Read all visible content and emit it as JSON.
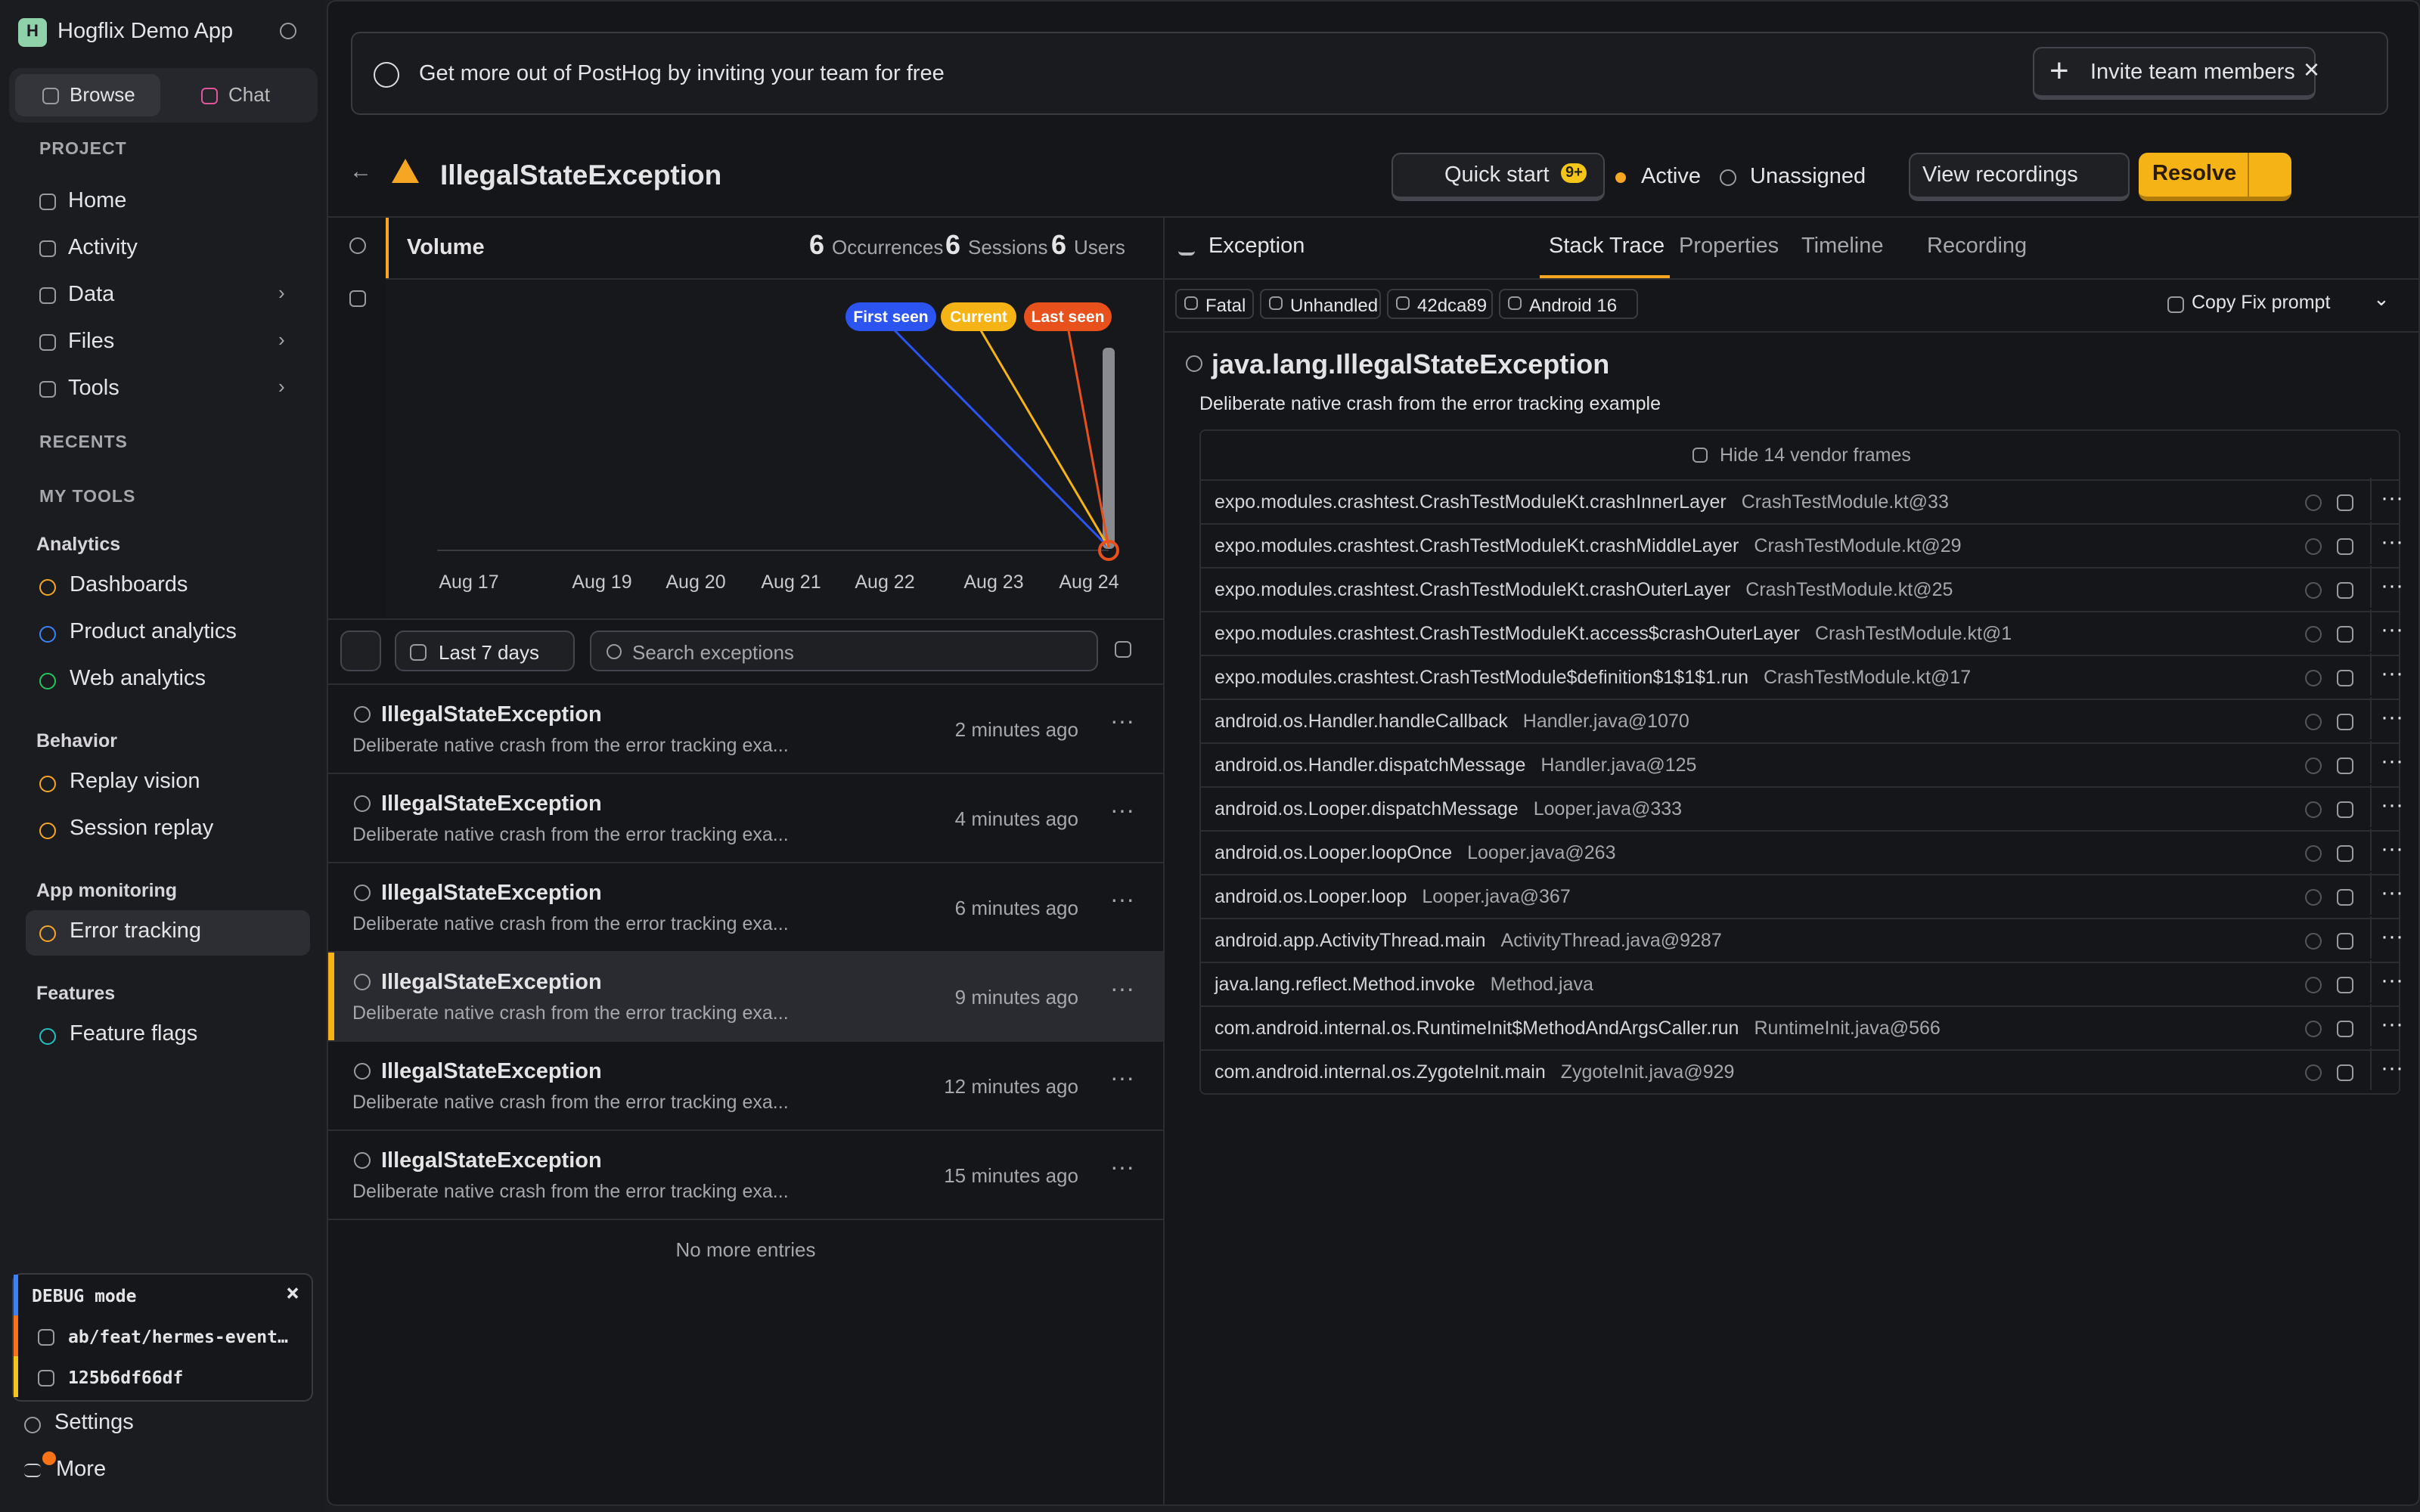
{
  "sidebar": {
    "logo_letter": "H",
    "app_name": "Hogflix Demo App",
    "tabs": [
      "Browse",
      "Chat"
    ],
    "project": "PROJECT",
    "nav": [
      "Home",
      "Activity",
      "Data",
      "Files",
      "Tools"
    ],
    "recents": "RECENTS",
    "my_tools": "MY TOOLS",
    "groups": [
      {
        "title": "Analytics",
        "items": [
          "Dashboards",
          "Product analytics",
          "Web analytics"
        ]
      },
      {
        "title": "Behavior",
        "items": [
          "Replay vision",
          "Session replay"
        ]
      },
      {
        "title": "App monitoring",
        "items": [
          "Error tracking"
        ]
      },
      {
        "title": "Features",
        "items": [
          "Feature flags"
        ]
      }
    ],
    "debug": {
      "title": "DEBUG mode",
      "branch": "ab/feat/hermes-event…",
      "commit": "125b6df66df"
    },
    "settings": "Settings",
    "more": "More"
  },
  "banner": {
    "text": "Get more out of PostHog by inviting your team for free",
    "button": "Invite team members"
  },
  "header": {
    "title": "IllegalStateException",
    "quick_start": "Quick start",
    "badge": "9+",
    "status": "Active",
    "assignee": "Unassigned",
    "view_recordings": "View recordings",
    "resolve": "Resolve"
  },
  "volume": {
    "title": "Volume",
    "stats": [
      {
        "value": 6,
        "label": "Occurrences"
      },
      {
        "value": 6,
        "label": "Sessions"
      },
      {
        "value": 6,
        "label": "Users"
      }
    ],
    "markers": [
      "First seen",
      "Current",
      "Last seen"
    ],
    "dates": [
      "Aug 17",
      "Aug 19",
      "Aug 20",
      "Aug 21",
      "Aug 22",
      "Aug 23",
      "Aug 24"
    ]
  },
  "filters": {
    "range": "Last 7 days",
    "search_placeholder": "Search exceptions"
  },
  "issues": [
    {
      "title": "IllegalStateException",
      "description": "Deliberate native crash from the error tracking exa...",
      "time": "2 minutes ago"
    },
    {
      "title": "IllegalStateException",
      "description": "Deliberate native crash from the error tracking exa...",
      "time": "4 minutes ago"
    },
    {
      "title": "IllegalStateException",
      "description": "Deliberate native crash from the error tracking exa...",
      "time": "6 minutes ago"
    },
    {
      "title": "IllegalStateException",
      "description": "Deliberate native crash from the error tracking exa...",
      "time": "9 minutes ago"
    },
    {
      "title": "IllegalStateException",
      "description": "Deliberate native crash from the error tracking exa...",
      "time": "12 minutes ago"
    },
    {
      "title": "IllegalStateException",
      "description": "Deliberate native crash from the error tracking exa...",
      "time": "15 minutes ago"
    }
  ],
  "no_more": "No more entries",
  "detail": {
    "section": "Exception",
    "tabs": [
      "Stack Trace",
      "Properties",
      "Timeline",
      "Recording"
    ],
    "tags": [
      "Fatal",
      "Unhandled",
      "42dca89",
      "Android 16"
    ],
    "copy_fix": "Copy Fix prompt",
    "exception_type": "java.lang.IllegalStateException",
    "message": "Deliberate native crash from the error tracking example",
    "vendor_toggle": "Hide 14 vendor frames",
    "frames": [
      {
        "function": "expo.modules.crashtest.CrashTestModuleKt.crashInnerLayer",
        "location": "CrashTestModule.kt@33"
      },
      {
        "function": "expo.modules.crashtest.CrashTestModuleKt.crashMiddleLayer",
        "location": "CrashTestModule.kt@29"
      },
      {
        "function": "expo.modules.crashtest.CrashTestModuleKt.crashOuterLayer",
        "location": "CrashTestModule.kt@25"
      },
      {
        "function": "expo.modules.crashtest.CrashTestModuleKt.access$crashOuterLayer",
        "location": "CrashTestModule.kt@1"
      },
      {
        "function": "expo.modules.crashtest.CrashTestModule$definition$1$1$1.run",
        "location": "CrashTestModule.kt@17"
      },
      {
        "function": "android.os.Handler.handleCallback",
        "location": "Handler.java@1070"
      },
      {
        "function": "android.os.Handler.dispatchMessage",
        "location": "Handler.java@125"
      },
      {
        "function": "android.os.Looper.dispatchMessage",
        "location": "Looper.java@333"
      },
      {
        "function": "android.os.Looper.loopOnce",
        "location": "Looper.java@263"
      },
      {
        "function": "android.os.Looper.loop",
        "location": "Looper.java@367"
      },
      {
        "function": "android.app.ActivityThread.main",
        "location": "ActivityThread.java@9287"
      },
      {
        "function": "java.lang.reflect.Method.invoke",
        "location": "Method.java"
      },
      {
        "function": "com.android.internal.os.RuntimeInit$MethodAndArgsCaller.run",
        "location": "RuntimeInit.java@566"
      },
      {
        "function": "com.android.internal.os.ZygoteInit.main",
        "location": "ZygoteInit.java@929"
      }
    ]
  }
}
